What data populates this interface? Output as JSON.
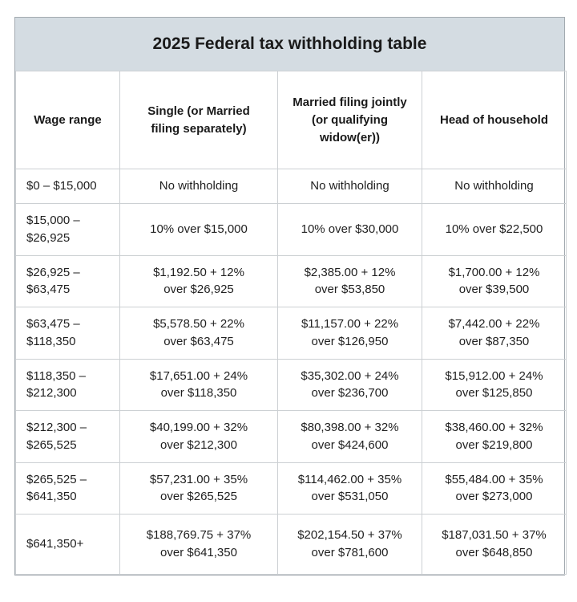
{
  "table": {
    "title": "2025 Federal tax withholding table",
    "colors": {
      "title_band_bg": "#d4dce2",
      "outer_border": "#a3aab0",
      "grid_border": "#ccd0d3",
      "text": "#1f1f1f",
      "page_bg": "#ffffff"
    },
    "columns": [
      "Wage range",
      "Single (or Married\nfiling separately)",
      "Married filing jointly\n(or qualifying\nwidow(er))",
      "Head of household"
    ],
    "rows": [
      {
        "wage_range": "$0 – $15,000",
        "single": "No withholding",
        "married_joint": "No withholding",
        "head_household": "No withholding"
      },
      {
        "wage_range": "$15,000 –\n$26,925",
        "single": "10% over $15,000",
        "married_joint": "10% over $30,000",
        "head_household": "10% over $22,500"
      },
      {
        "wage_range": "$26,925 –\n$63,475",
        "single": "$1,192.50 + 12%\nover $26,925",
        "married_joint": "$2,385.00 + 12%\nover $53,850",
        "head_household": "$1,700.00 + 12%\nover $39,500"
      },
      {
        "wage_range": "$63,475 –\n$118,350",
        "single": "$5,578.50 + 22%\nover $63,475",
        "married_joint": "$11,157.00 + 22%\nover $126,950",
        "head_household": "$7,442.00 + 22%\nover $87,350"
      },
      {
        "wage_range": "$118,350 –\n$212,300",
        "single": "$17,651.00 + 24%\nover $118,350",
        "married_joint": "$35,302.00 + 24%\nover $236,700",
        "head_household": "$15,912.00 + 24%\nover $125,850"
      },
      {
        "wage_range": "$212,300 –\n$265,525",
        "single": "$40,199.00 + 32%\nover $212,300",
        "married_joint": "$80,398.00 + 32%\nover $424,600",
        "head_household": "$38,460.00 + 32%\nover $219,800"
      },
      {
        "wage_range": "$265,525 –\n$641,350",
        "single": "$57,231.00 + 35%\nover $265,525",
        "married_joint": "$114,462.00 + 35%\nover $531,050",
        "head_household": "$55,484.00 + 35%\nover $273,000"
      },
      {
        "wage_range": "$641,350+",
        "single": "$188,769.75 + 37%\nover $641,350",
        "married_joint": "$202,154.50 + 37%\nover $781,600",
        "head_household": "$187,031.50 + 37%\nover $648,850"
      }
    ]
  }
}
